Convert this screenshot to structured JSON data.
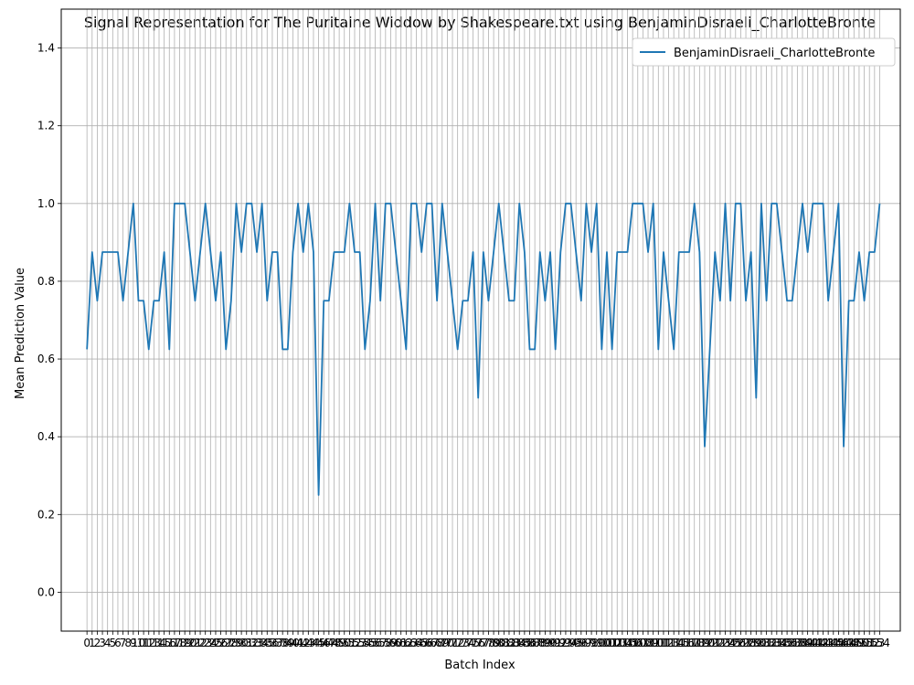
{
  "chart_data": {
    "type": "line",
    "title": "Signal Representation for The Puritaine Widdow by Shakespeare.txt using BenjaminDisraeli_CharlotteBronte",
    "xlabel": "Batch Index",
    "ylabel": "Mean Prediction Value",
    "xlim": [
      -5,
      158
    ],
    "ylim": [
      -0.1,
      1.5
    ],
    "yticks": [
      "0.0",
      "0.2",
      "0.4",
      "0.6",
      "0.8",
      "1.0",
      "1.2",
      "1.4"
    ],
    "grid": true,
    "legend_position": "top-right",
    "series_color": "#1f77b4",
    "series": [
      {
        "name": "BenjaminDisraeli_CharlotteBronte",
        "values": [
          0.625,
          0.875,
          0.75,
          0.875,
          0.875,
          0.875,
          0.875,
          0.75,
          0.875,
          1.0,
          0.75,
          0.75,
          0.625,
          0.75,
          0.75,
          0.875,
          0.625,
          1.0,
          1.0,
          1.0,
          0.875,
          0.75,
          0.875,
          1.0,
          0.875,
          0.75,
          0.875,
          0.625,
          0.75,
          1.0,
          0.875,
          1.0,
          1.0,
          0.875,
          1.0,
          0.75,
          0.875,
          0.875,
          0.625,
          0.625,
          0.875,
          1.0,
          0.875,
          1.0,
          0.875,
          0.25,
          0.75,
          0.75,
          0.875,
          0.875,
          0.875,
          1.0,
          0.875,
          0.875,
          0.625,
          0.75,
          1.0,
          0.75,
          1.0,
          1.0,
          0.875,
          0.75,
          0.625,
          1.0,
          1.0,
          0.875,
          1.0,
          1.0,
          0.75,
          1.0,
          0.875,
          0.75,
          0.625,
          0.75,
          0.75,
          0.875,
          0.5,
          0.875,
          0.75,
          0.875,
          1.0,
          0.875,
          0.75,
          0.75,
          1.0,
          0.875,
          0.625,
          0.625,
          0.875,
          0.75,
          0.875,
          0.625,
          0.875,
          1.0,
          1.0,
          0.875,
          0.75,
          1.0,
          0.875,
          1.0,
          0.625,
          0.875,
          0.625,
          0.875,
          0.875,
          0.875,
          1.0,
          1.0,
          1.0,
          0.875,
          1.0,
          0.625,
          0.875,
          0.75,
          0.625,
          0.875,
          0.875,
          0.875,
          1.0,
          0.875,
          0.375,
          0.625,
          0.875,
          0.75,
          1.0,
          0.75,
          1.0,
          1.0,
          0.75,
          0.875,
          0.5,
          1.0,
          0.75,
          1.0,
          1.0,
          0.875,
          0.75,
          0.75,
          0.875,
          1.0,
          0.875,
          1.0,
          1.0,
          1.0,
          0.75,
          0.875,
          1.0,
          0.375,
          0.75,
          0.75,
          0.875,
          0.75,
          0.875,
          0.875,
          1.0
        ]
      }
    ]
  }
}
